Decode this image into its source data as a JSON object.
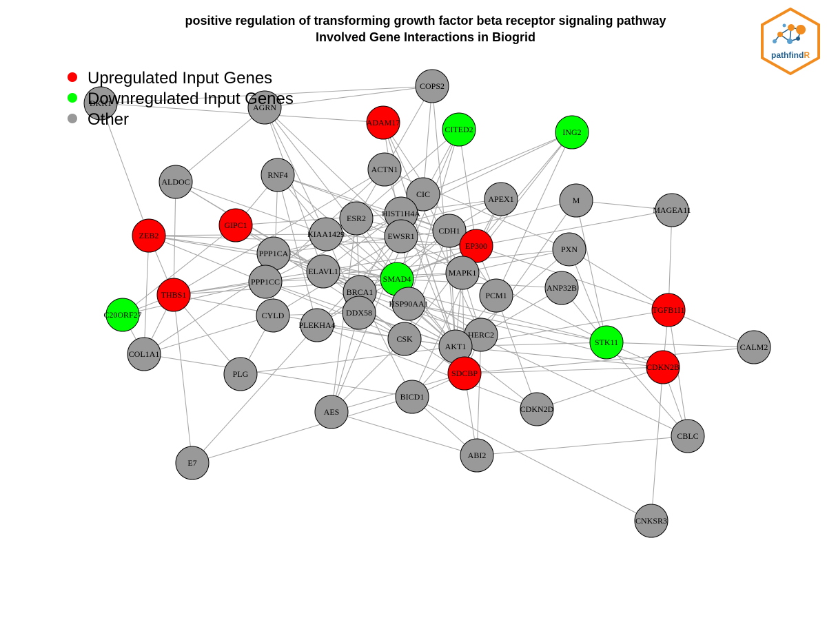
{
  "title": {
    "line1": "positive regulation of transforming growth factor beta receptor signaling pathway",
    "line2": "Involved Gene Interactions in Biogrid"
  },
  "logo": {
    "text_path": "pathfind",
    "text_r": "R"
  },
  "colors": {
    "up": "#ff0000",
    "down": "#00ff00",
    "other": "#999999",
    "edge": "#a8a8a8",
    "logo_border": "#f28c1e",
    "logo_text": "#1f5c8a"
  },
  "legend": [
    {
      "label": "Upregulated Input Genes",
      "status": "up"
    },
    {
      "label": "Downregulated Input Genes",
      "status": "down"
    },
    {
      "label": "Other",
      "status": "other"
    }
  ],
  "nodes": [
    {
      "id": "COPS2",
      "status": "other"
    },
    {
      "id": "AGRN",
      "status": "other"
    },
    {
      "id": "DKK1",
      "status": "other"
    },
    {
      "id": "ADAM17",
      "status": "up"
    },
    {
      "id": "CITED2",
      "status": "down"
    },
    {
      "id": "ING2",
      "status": "down"
    },
    {
      "id": "ALDOC",
      "status": "other"
    },
    {
      "id": "RNF4",
      "status": "other"
    },
    {
      "id": "ACTN1",
      "status": "other"
    },
    {
      "id": "CIC",
      "status": "other"
    },
    {
      "id": "APEX1",
      "status": "other"
    },
    {
      "id": "M",
      "status": "other"
    },
    {
      "id": "MAGEA11",
      "status": "other"
    },
    {
      "id": "ZEB2",
      "status": "up"
    },
    {
      "id": "GIPC1",
      "status": "up"
    },
    {
      "id": "KIAA1429",
      "status": "other"
    },
    {
      "id": "ESR2",
      "status": "other"
    },
    {
      "id": "HIST1H4A",
      "status": "other"
    },
    {
      "id": "EWSR1",
      "status": "other"
    },
    {
      "id": "CDH1",
      "status": "other"
    },
    {
      "id": "EP300",
      "status": "up"
    },
    {
      "id": "PXN",
      "status": "other"
    },
    {
      "id": "PPP1CA",
      "status": "other"
    },
    {
      "id": "ELAVL1",
      "status": "other"
    },
    {
      "id": "SMAD4",
      "status": "down"
    },
    {
      "id": "MAPK1",
      "status": "other"
    },
    {
      "id": "PPP1CC",
      "status": "other"
    },
    {
      "id": "THBS1",
      "status": "up"
    },
    {
      "id": "BRCA1",
      "status": "other"
    },
    {
      "id": "HSP90AA1",
      "status": "other"
    },
    {
      "id": "PCM1",
      "status": "other"
    },
    {
      "id": "ANP32B",
      "status": "other"
    },
    {
      "id": "TGFB1I1",
      "status": "up"
    },
    {
      "id": "C20ORF27",
      "status": "down"
    },
    {
      "id": "CYLD",
      "status": "other"
    },
    {
      "id": "DDX58",
      "status": "other"
    },
    {
      "id": "PLEKHA4",
      "status": "other"
    },
    {
      "id": "HERC2",
      "status": "other"
    },
    {
      "id": "CSK",
      "status": "other"
    },
    {
      "id": "AKT1",
      "status": "other"
    },
    {
      "id": "STK11",
      "status": "down"
    },
    {
      "id": "CALM2",
      "status": "other"
    },
    {
      "id": "COL1A1",
      "status": "other"
    },
    {
      "id": "CDKN2B",
      "status": "up"
    },
    {
      "id": "PLG",
      "status": "other"
    },
    {
      "id": "SDCBP",
      "status": "up"
    },
    {
      "id": "BICD1",
      "status": "other"
    },
    {
      "id": "AES",
      "status": "other"
    },
    {
      "id": "CDKN2D",
      "status": "other"
    },
    {
      "id": "CBLC",
      "status": "other"
    },
    {
      "id": "ABI2",
      "status": "other"
    },
    {
      "id": "E7",
      "status": "other"
    },
    {
      "id": "CNKSR3",
      "status": "other"
    }
  ],
  "edges": [
    [
      "AGRN",
      "COPS2"
    ],
    [
      "DKK1",
      "COPS2"
    ],
    [
      "DKK1",
      "ADAM17"
    ],
    [
      "DKK1",
      "ZEB2"
    ],
    [
      "COPS2",
      "ACTN1"
    ],
    [
      "COPS2",
      "AKT1"
    ],
    [
      "COPS2",
      "CIC"
    ],
    [
      "AGRN",
      "KIAA1429"
    ],
    [
      "AGRN",
      "ELAVL1"
    ],
    [
      "AGRN",
      "EWSR1"
    ],
    [
      "AGRN",
      "SMAD4"
    ],
    [
      "AGRN",
      "ALDOC"
    ],
    [
      "ADAM17",
      "SDCBP"
    ],
    [
      "ADAM17",
      "PCM1"
    ],
    [
      "ADAM17",
      "HERC2"
    ],
    [
      "ADAM17",
      "AKT1"
    ],
    [
      "ADAM17",
      "EWSR1"
    ],
    [
      "CITED2",
      "EP300"
    ],
    [
      "CITED2",
      "SMAD4"
    ],
    [
      "CITED2",
      "HSP90AA1"
    ],
    [
      "CITED2",
      "EWSR1"
    ],
    [
      "CITED2",
      "ESR2"
    ],
    [
      "ING2",
      "EP300"
    ],
    [
      "ING2",
      "CIC"
    ],
    [
      "ING2",
      "MAPK1"
    ],
    [
      "ING2",
      "HIST1H4A"
    ],
    [
      "ING2",
      "PCM1"
    ],
    [
      "ALDOC",
      "ELAVL1"
    ],
    [
      "ALDOC",
      "BRCA1"
    ],
    [
      "ALDOC",
      "KIAA1429"
    ],
    [
      "RNF4",
      "KIAA1429"
    ],
    [
      "RNF4",
      "SMAD4"
    ],
    [
      "RNF4",
      "EP300"
    ],
    [
      "RNF4",
      "CDH1"
    ],
    [
      "RNF4",
      "CYLD"
    ],
    [
      "RNF4",
      "PLEKHA4"
    ],
    [
      "ACTN1",
      "AKT1"
    ],
    [
      "ACTN1",
      "ESR2"
    ],
    [
      "ACTN1",
      "PPP1CC"
    ],
    [
      "ACTN1",
      "THBS1"
    ],
    [
      "ACTN1",
      "PXN"
    ],
    [
      "CIC",
      "MAPK1"
    ],
    [
      "CIC",
      "ELAVL1"
    ],
    [
      "CIC",
      "AES"
    ],
    [
      "APEX1",
      "EP300"
    ],
    [
      "APEX1",
      "ESR2"
    ],
    [
      "APEX1",
      "CDH1"
    ],
    [
      "APEX1",
      "PPP1CA"
    ],
    [
      "APEX1",
      "BICD1"
    ],
    [
      "M",
      "MAGEA11"
    ],
    [
      "M",
      "STK11"
    ],
    [
      "M",
      "HERC2"
    ],
    [
      "M",
      "CDH1"
    ],
    [
      "MAGEA11",
      "EP300"
    ],
    [
      "MAGEA11",
      "TGFB1I1"
    ],
    [
      "ZEB2",
      "EP300"
    ],
    [
      "ZEB2",
      "SMAD4"
    ],
    [
      "ZEB2",
      "THBS1"
    ],
    [
      "ZEB2",
      "KIAA1429"
    ],
    [
      "ZEB2",
      "CSK"
    ],
    [
      "GIPC1",
      "C20ORF27"
    ],
    [
      "GIPC1",
      "ELAVL1"
    ],
    [
      "GIPC1",
      "HIST1H4A"
    ],
    [
      "GIPC1",
      "SDCBP"
    ],
    [
      "GIPC1",
      "RNF4"
    ],
    [
      "KIAA1429",
      "EP300"
    ],
    [
      "KIAA1429",
      "DDX58"
    ],
    [
      "KIAA1429",
      "AKT1"
    ],
    [
      "KIAA1429",
      "COL1A1"
    ],
    [
      "KIAA1429",
      "HERC2"
    ],
    [
      "ESR2",
      "EP300"
    ],
    [
      "ESR2",
      "AKT1"
    ],
    [
      "ESR2",
      "BRCA1"
    ],
    [
      "ESR2",
      "MAPK1"
    ],
    [
      "ESR2",
      "AES"
    ],
    [
      "HIST1H4A",
      "BRCA1"
    ],
    [
      "HIST1H4A",
      "CDH1"
    ],
    [
      "HIST1H4A",
      "HSP90AA1"
    ],
    [
      "HIST1H4A",
      "PPP1CC"
    ],
    [
      "EWSR1",
      "DDX58"
    ],
    [
      "EWSR1",
      "CYLD"
    ],
    [
      "EWSR1",
      "STK11"
    ],
    [
      "EWSR1",
      "PLEKHA4"
    ],
    [
      "CDH1",
      "SMAD4"
    ],
    [
      "CDH1",
      "AKT1"
    ],
    [
      "CDH1",
      "CSK"
    ],
    [
      "CDH1",
      "PPP1CA"
    ],
    [
      "CDH1",
      "PLEKHA4"
    ],
    [
      "EP300",
      "SMAD4"
    ],
    [
      "EP300",
      "TGFB1I1"
    ],
    [
      "EP300",
      "BRCA1"
    ],
    [
      "EP300",
      "MAPK1"
    ],
    [
      "EP300",
      "PCM1"
    ],
    [
      "EP300",
      "CSK"
    ],
    [
      "EP300",
      "THBS1"
    ],
    [
      "PXN",
      "TGFB1I1"
    ],
    [
      "PXN",
      "AKT1"
    ],
    [
      "PXN",
      "STK11"
    ],
    [
      "PXN",
      "PPP1CC"
    ],
    [
      "PPP1CA",
      "SMAD4"
    ],
    [
      "PPP1CA",
      "BRCA1"
    ],
    [
      "PPP1CA",
      "HSP90AA1"
    ],
    [
      "PPP1CA",
      "ZEB2"
    ],
    [
      "ELAVL1",
      "SMAD4"
    ],
    [
      "ELAVL1",
      "HSP90AA1"
    ],
    [
      "ELAVL1",
      "CSK"
    ],
    [
      "ELAVL1",
      "AKT1"
    ],
    [
      "ELAVL1",
      "STK11"
    ],
    [
      "SMAD4",
      "MAPK1"
    ],
    [
      "SMAD4",
      "AKT1"
    ],
    [
      "SMAD4",
      "THBS1"
    ],
    [
      "SMAD4",
      "PLEKHA4"
    ],
    [
      "SMAD4",
      "HSP90AA1"
    ],
    [
      "SMAD4",
      "ANP32B"
    ],
    [
      "MAPK1",
      "HERC2"
    ],
    [
      "MAPK1",
      "PXN"
    ],
    [
      "MAPK1",
      "AKT1"
    ],
    [
      "MAPK1",
      "SDCBP"
    ],
    [
      "PPP1CC",
      "MAPK1"
    ],
    [
      "PPP1CC",
      "THBS1"
    ],
    [
      "PPP1CC",
      "AKT1"
    ],
    [
      "THBS1",
      "C20ORF27"
    ],
    [
      "THBS1",
      "COL1A1"
    ],
    [
      "THBS1",
      "PLG"
    ],
    [
      "THBS1",
      "E7"
    ],
    [
      "THBS1",
      "CSK"
    ],
    [
      "BRCA1",
      "AKT1"
    ],
    [
      "BRCA1",
      "HERC2"
    ],
    [
      "BRCA1",
      "BICD1"
    ],
    [
      "HSP90AA1",
      "STK11"
    ],
    [
      "HSP90AA1",
      "AKT1"
    ],
    [
      "HSP90AA1",
      "CDKN2B"
    ],
    [
      "HSP90AA1",
      "CBLC"
    ],
    [
      "PCM1",
      "AKT1"
    ],
    [
      "PCM1",
      "CDKN2D"
    ],
    [
      "ANP32B",
      "HERC2"
    ],
    [
      "ANP32B",
      "STK11"
    ],
    [
      "TGFB1I1",
      "CALM2"
    ],
    [
      "TGFB1I1",
      "CDKN2B"
    ],
    [
      "TGFB1I1",
      "CBLC"
    ],
    [
      "TGFB1I1",
      "AKT1"
    ],
    [
      "C20ORF27",
      "COL1A1"
    ],
    [
      "C20ORF27",
      "PPP1CC"
    ],
    [
      "CYLD",
      "DDX58"
    ],
    [
      "CYLD",
      "PLG"
    ],
    [
      "CYLD",
      "COL1A1"
    ],
    [
      "DDX58",
      "AKT1"
    ],
    [
      "DDX58",
      "CSK"
    ],
    [
      "DDX58",
      "AES"
    ],
    [
      "PLEKHA4",
      "E7"
    ],
    [
      "PLEKHA4",
      "AKT1"
    ],
    [
      "PLEKHA4",
      "CDKN2D"
    ],
    [
      "HERC2",
      "SDCBP"
    ],
    [
      "HERC2",
      "ABI2"
    ],
    [
      "CSK",
      "AKT1"
    ],
    [
      "CSK",
      "AES"
    ],
    [
      "AKT1",
      "STK11"
    ],
    [
      "AKT1",
      "CDKN2B"
    ],
    [
      "AKT1",
      "CDKN2D"
    ],
    [
      "AKT1",
      "BICD1"
    ],
    [
      "STK11",
      "CALM2"
    ],
    [
      "STK11",
      "CDKN2B"
    ],
    [
      "STK11",
      "CBLC"
    ],
    [
      "COL1A1",
      "BICD1"
    ],
    [
      "CDKN2B",
      "CNKSR3"
    ],
    [
      "CDKN2B",
      "CDKN2D"
    ],
    [
      "CDKN2B",
      "SDCBP"
    ],
    [
      "SDCBP",
      "BICD1"
    ],
    [
      "SDCBP",
      "ABI2"
    ],
    [
      "SDCBP",
      "AES"
    ],
    [
      "BICD1",
      "E7"
    ],
    [
      "BICD1",
      "ABI2"
    ],
    [
      "BICD1",
      "CNKSR3"
    ],
    [
      "AES",
      "ABI2"
    ],
    [
      "ABI2",
      "CBLC"
    ],
    [
      "CALM2",
      "SDCBP"
    ],
    [
      "CBLC",
      "CDKN2B"
    ],
    [
      "PLG",
      "AKT1"
    ],
    [
      "COL1A1",
      "ZEB2"
    ],
    [
      "ALDOC",
      "THBS1"
    ]
  ]
}
